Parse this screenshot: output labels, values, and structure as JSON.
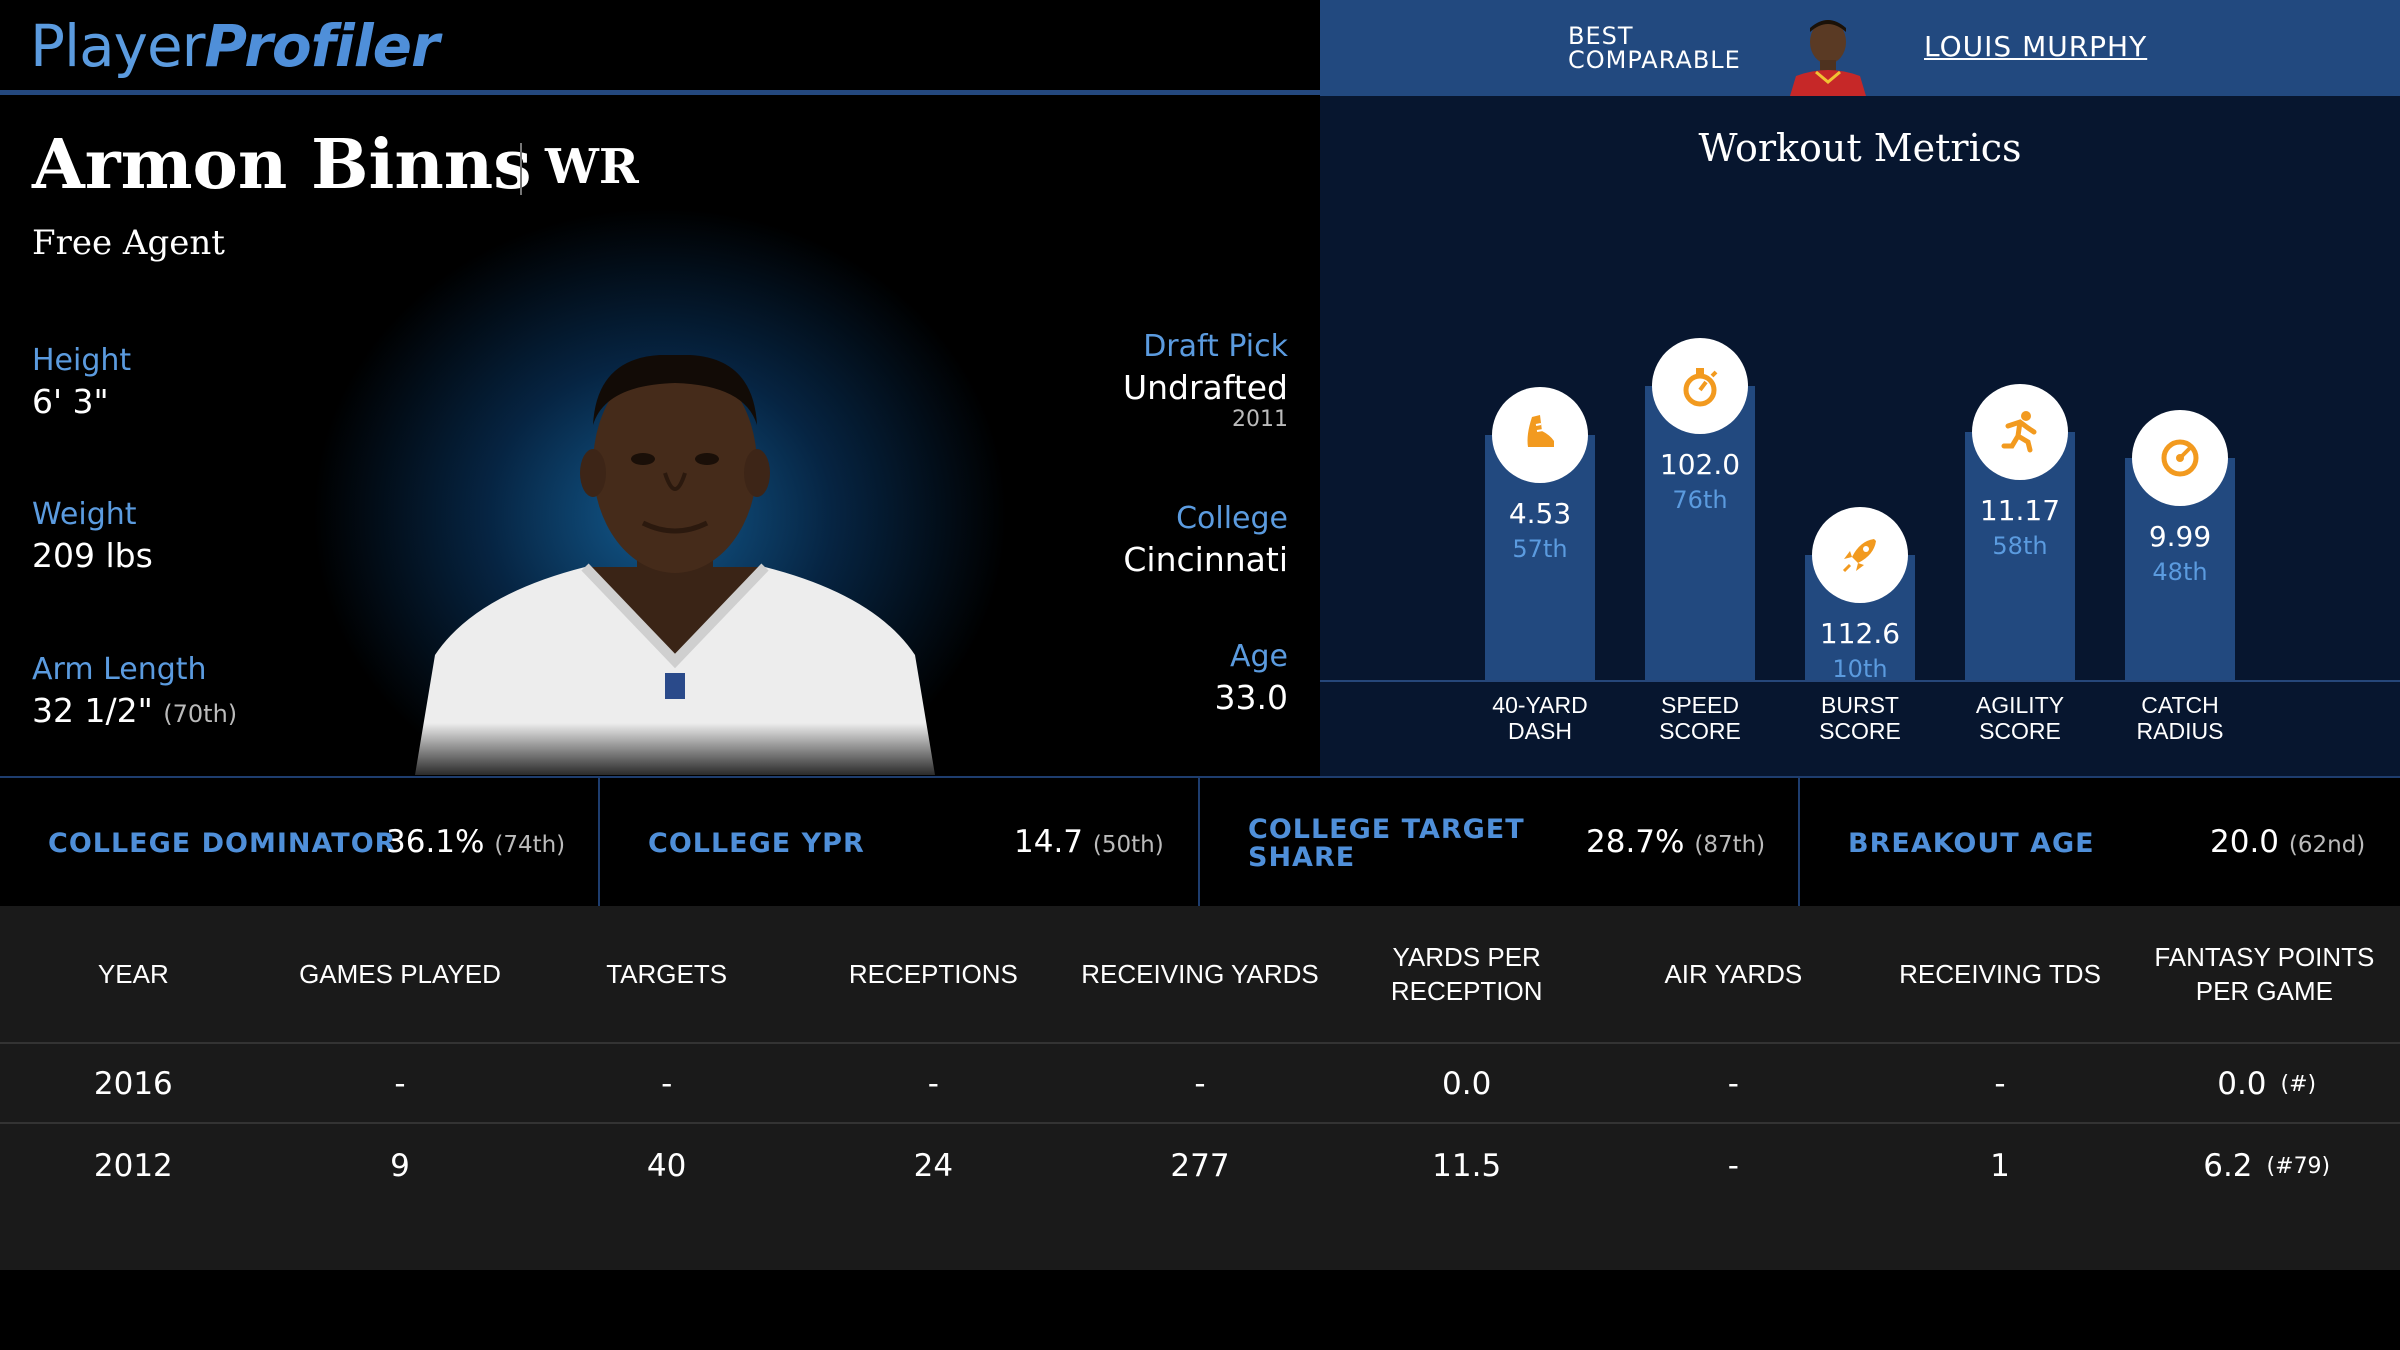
{
  "header": {
    "logo_part1": "Player",
    "logo_part2": "Profiler",
    "best_comparable_label_line1": "BEST",
    "best_comparable_label_line2": "COMPARABLE",
    "best_comparable_name": "LOUIS MURPHY"
  },
  "player": {
    "name": "Armon Binns",
    "position": "WR",
    "team": "Free Agent",
    "height_label": "Height",
    "height": "6' 3\"",
    "weight_label": "Weight",
    "weight": "209 lbs",
    "arm_label": "Arm Length",
    "arm": "32 1/2\"",
    "arm_rank": "(70th)",
    "draft_label": "Draft Pick",
    "draft": "Undrafted",
    "draft_year": "2011",
    "college_label": "College",
    "college": "Cincinnati",
    "age_label": "Age",
    "age": "33.0"
  },
  "workout": {
    "title": "Workout Metrics",
    "bars": [
      {
        "label_line1": "40-YARD",
        "label_line2": "DASH",
        "value": "4.53",
        "percentile": "57th",
        "percentile_num": 57,
        "icon": "shoe-icon"
      },
      {
        "label_line1": "SPEED",
        "label_line2": "SCORE",
        "value": "102.0",
        "percentile": "76th",
        "percentile_num": 76,
        "icon": "stopwatch-icon"
      },
      {
        "label_line1": "BURST",
        "label_line2": "SCORE",
        "value": "112.6",
        "percentile": "10th",
        "percentile_num": 10,
        "icon": "rocket-icon"
      },
      {
        "label_line1": "AGILITY",
        "label_line2": "SCORE",
        "value": "11.17",
        "percentile": "58th",
        "percentile_num": 58,
        "icon": "runner-icon"
      },
      {
        "label_line1": "CATCH",
        "label_line2": "RADIUS",
        "value": "9.99",
        "percentile": "48th",
        "percentile_num": 48,
        "icon": "target-icon"
      }
    ]
  },
  "metrics": [
    {
      "label_line1": "COLLEGE DOMINATOR",
      "label_line2": "",
      "value": "36.1%",
      "rank": "(74th)"
    },
    {
      "label_line1": "COLLEGE YPR",
      "label_line2": "",
      "value": "14.7",
      "rank": "(50th)"
    },
    {
      "label_line1": "COLLEGE TARGET",
      "label_line2": "SHARE",
      "value": "28.7%",
      "rank": "(87th)"
    },
    {
      "label_line1": "BREAKOUT AGE",
      "label_line2": "",
      "value": "20.0",
      "rank": "(62nd)"
    }
  ],
  "stats_table": {
    "columns": [
      "YEAR",
      "GAMES PLAYED",
      "TARGETS",
      "RECEPTIONS",
      "RECEIVING YARDS",
      "YARDS PER RECEPTION",
      "AIR YARDS",
      "RECEIVING TDS",
      "FANTASY POINTS PER GAME"
    ],
    "rows": [
      {
        "cells": [
          "2016",
          "-",
          "-",
          "-",
          "-",
          "0.0",
          "-",
          "-",
          "0.0"
        ],
        "rank": "(#)"
      },
      {
        "cells": [
          "2012",
          "9",
          "40",
          "24",
          "277",
          "11.5",
          "-",
          "1",
          "6.2"
        ],
        "rank": "(#79)"
      }
    ]
  },
  "colors": {
    "accent_blue": "#5b9bdf",
    "bar_blue": "#22497f",
    "icon_orange": "#f29a1f"
  }
}
